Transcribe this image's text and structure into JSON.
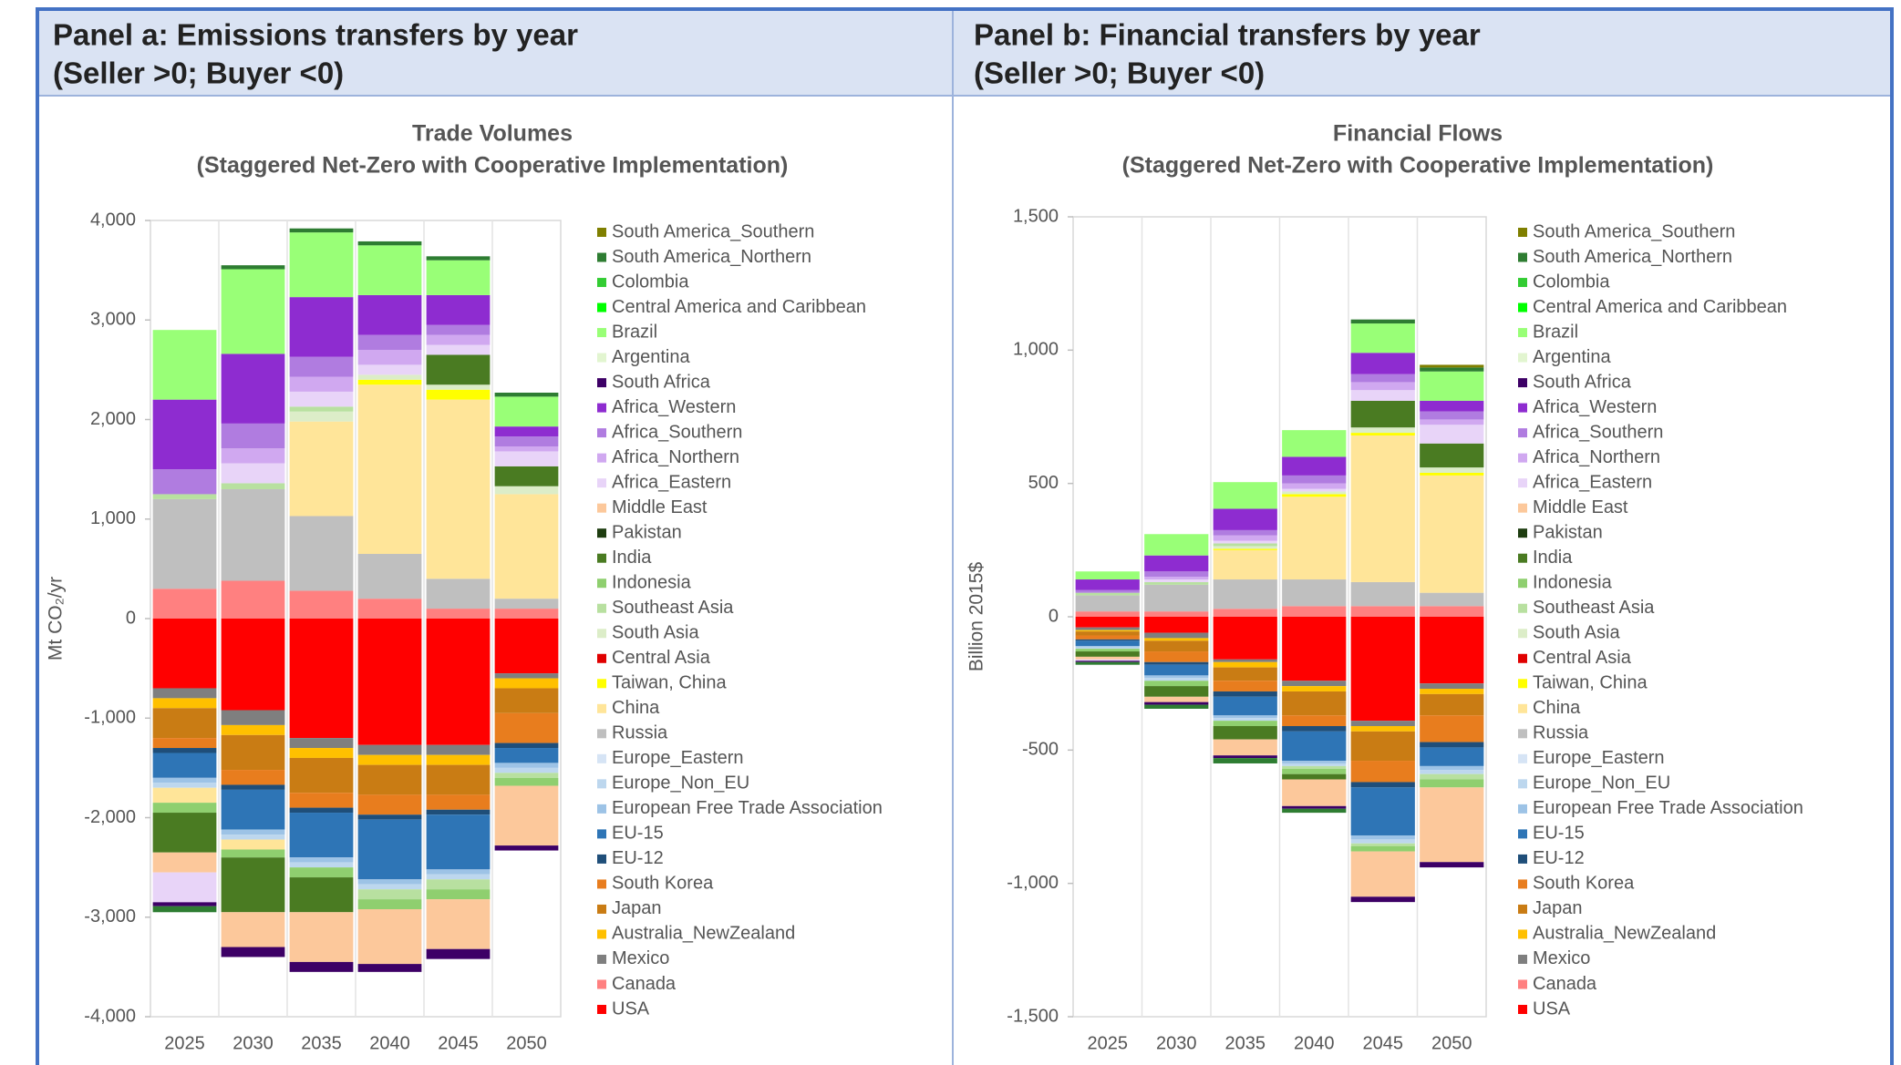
{
  "panels": [
    {
      "header": [
        "Panel a: Emissions transfers by year",
        "(Seller >0; Buyer <0)"
      ]
    },
    {
      "header": [
        "Panel b: Financial transfers by year",
        "(Seller >0; Buyer <0)"
      ]
    }
  ],
  "chart_data": [
    {
      "type": "stacked_bar",
      "title": "Trade Volumes",
      "subtitle": "(Staggered Net-Zero with Cooperative Implementation)",
      "y_label": "Mt CO₂/yr",
      "categories": [
        "2025",
        "2030",
        "2035",
        "2040",
        "2045",
        "2050"
      ],
      "ylim": [
        -4000,
        4000
      ],
      "yticks": [
        {
          "value": 4000,
          "label": "4,000"
        },
        {
          "value": 3000,
          "label": "3,000"
        },
        {
          "value": 2000,
          "label": "2,000"
        },
        {
          "value": 1000,
          "label": "1,000"
        },
        0,
        {
          "value": -1000,
          "label": "-1,000"
        },
        {
          "value": -2000,
          "label": "-2,000"
        },
        {
          "value": -3000,
          "label": "-3,000"
        },
        {
          "value": -4000,
          "label": "-4,000"
        }
      ],
      "grid": false,
      "legend": "right",
      "series": [
        {
          "name": "South America_Southern",
          "color": "#7f7f00",
          "values": [
            0,
            0,
            0,
            0,
            0,
            0
          ]
        },
        {
          "name": "South America_Northern",
          "color": "#2e7d32",
          "values": [
            -60,
            40,
            40,
            40,
            40,
            40
          ]
        },
        {
          "name": "Colombia",
          "color": "#33cc33",
          "values": [
            0,
            0,
            0,
            0,
            0,
            0
          ]
        },
        {
          "name": "Central America and Caribbean",
          "color": "#00ff00",
          "values": [
            0,
            0,
            0,
            0,
            0,
            0
          ]
        },
        {
          "name": "Brazil",
          "color": "#99ff77",
          "values": [
            700,
            850,
            650,
            500,
            350,
            300
          ]
        },
        {
          "name": "Argentina",
          "color": "#e2f5d0",
          "values": [
            0,
            0,
            0,
            0,
            0,
            0
          ]
        },
        {
          "name": "South Africa",
          "color": "#3d0066",
          "values": [
            -40,
            -100,
            -100,
            -80,
            -100,
            -50
          ]
        },
        {
          "name": "Africa_Western",
          "color": "#8e2cd0",
          "values": [
            700,
            700,
            600,
            400,
            300,
            100
          ]
        },
        {
          "name": "Africa_Southern",
          "color": "#b07ce0",
          "values": [
            250,
            250,
            200,
            150,
            100,
            100
          ]
        },
        {
          "name": "Africa_Northern",
          "color": "#d0a8f0",
          "values": [
            0,
            150,
            150,
            150,
            100,
            50
          ]
        },
        {
          "name": "Africa_Eastern",
          "color": "#e8d4f8",
          "values": [
            -300,
            200,
            150,
            100,
            100,
            150
          ]
        },
        {
          "name": "Middle East",
          "color": "#fcc89b",
          "values": [
            -200,
            -350,
            -500,
            -550,
            -500,
            -600
          ]
        },
        {
          "name": "Pakistan",
          "color": "#1e3d10",
          "values": [
            0,
            0,
            0,
            0,
            0,
            0
          ]
        },
        {
          "name": "India",
          "color": "#4a7b22",
          "values": [
            -400,
            -550,
            -350,
            0,
            300,
            200
          ]
        },
        {
          "name": "Indonesia",
          "color": "#8fcf6f",
          "values": [
            -100,
            -80,
            -100,
            -100,
            -100,
            -80
          ]
        },
        {
          "name": "Southeast Asia",
          "color": "#b8e0a0",
          "values": [
            50,
            60,
            50,
            -100,
            -100,
            -50
          ]
        },
        {
          "name": "South Asia",
          "color": "#dcedc8",
          "values": [
            0,
            0,
            100,
            50,
            50,
            80
          ]
        },
        {
          "name": "Central Asia",
          "color": "#e00000",
          "values": [
            0,
            0,
            0,
            0,
            0,
            0
          ]
        },
        {
          "name": "Taiwan, China",
          "color": "#ffff00",
          "values": [
            0,
            0,
            0,
            50,
            100,
            0
          ]
        },
        {
          "name": "China",
          "color": "#ffe599",
          "values": [
            -150,
            -100,
            950,
            1700,
            1800,
            1050
          ]
        },
        {
          "name": "Russia",
          "color": "#bfbfbf",
          "values": [
            900,
            920,
            750,
            450,
            300,
            100
          ]
        },
        {
          "name": "Europe_Eastern",
          "color": "#d6e4f5",
          "values": [
            0,
            0,
            0,
            0,
            0,
            0
          ]
        },
        {
          "name": "Europe_Non_EU",
          "color": "#bdd7ee",
          "values": [
            -50,
            -50,
            -50,
            -50,
            -50,
            -50
          ]
        },
        {
          "name": "European Free Trade Association",
          "color": "#9dc3e6",
          "values": [
            -50,
            -50,
            -50,
            -50,
            -50,
            -50
          ]
        },
        {
          "name": "EU-15",
          "color": "#2e75b6",
          "values": [
            -250,
            -400,
            -450,
            -600,
            -550,
            -150
          ]
        },
        {
          "name": "EU-12",
          "color": "#1f4e79",
          "values": [
            -50,
            -50,
            -50,
            -50,
            -50,
            -50
          ]
        },
        {
          "name": "South Korea",
          "color": "#e87d1e",
          "values": [
            -100,
            -150,
            -150,
            -200,
            -150,
            -300
          ]
        },
        {
          "name": "Japan",
          "color": "#c97c14",
          "values": [
            -300,
            -350,
            -350,
            -300,
            -300,
            -250
          ]
        },
        {
          "name": "Australia_NewZealand",
          "color": "#ffc000",
          "values": [
            -100,
            -100,
            -100,
            -100,
            -100,
            -100
          ]
        },
        {
          "name": "Mexico",
          "color": "#7f7f7f",
          "values": [
            -100,
            -150,
            -100,
            -100,
            -100,
            -50
          ]
        },
        {
          "name": "Canada",
          "color": "#ff8080",
          "values": [
            300,
            380,
            280,
            200,
            100,
            100
          ]
        },
        {
          "name": "USA",
          "color": "#ff0000",
          "values": [
            -700,
            -920,
            -1200,
            -1270,
            -1270,
            -550
          ]
        }
      ]
    },
    {
      "type": "stacked_bar",
      "title": "Financial Flows",
      "subtitle": "(Staggered Net-Zero with Cooperative Implementation)",
      "y_label": "Billion 2015$",
      "categories": [
        "2025",
        "2030",
        "2035",
        "2040",
        "2045",
        "2050"
      ],
      "ylim": [
        -1500,
        1500
      ],
      "yticks": [
        {
          "value": 1500,
          "label": "1,500"
        },
        {
          "value": 1000,
          "label": "1,000"
        },
        500,
        0,
        -500,
        {
          "value": -1000,
          "label": "-1,000"
        },
        {
          "value": -1500,
          "label": "-1,500"
        }
      ],
      "grid": false,
      "legend": "right",
      "series": [
        {
          "name": "South America_Southern",
          "color": "#7f7f00",
          "values": [
            0,
            0,
            0,
            0,
            0,
            10
          ]
        },
        {
          "name": "South America_Northern",
          "color": "#2e7d32",
          "values": [
            -10,
            -15,
            -20,
            -15,
            15,
            15
          ]
        },
        {
          "name": "Colombia",
          "color": "#33cc33",
          "values": [
            0,
            0,
            0,
            0,
            0,
            0
          ]
        },
        {
          "name": "Central America and Caribbean",
          "color": "#00ff00",
          "values": [
            0,
            0,
            0,
            0,
            0,
            0
          ]
        },
        {
          "name": "Brazil",
          "color": "#99ff77",
          "values": [
            30,
            80,
            100,
            100,
            110,
            110
          ]
        },
        {
          "name": "Argentina",
          "color": "#e2f5d0",
          "values": [
            0,
            0,
            0,
            0,
            0,
            0
          ]
        },
        {
          "name": "South Africa",
          "color": "#3d0066",
          "values": [
            -5,
            -10,
            -10,
            -10,
            -20,
            -20
          ]
        },
        {
          "name": "Africa_Western",
          "color": "#8e2cd0",
          "values": [
            40,
            60,
            80,
            70,
            80,
            40
          ]
        },
        {
          "name": "Africa_Southern",
          "color": "#b07ce0",
          "values": [
            10,
            20,
            20,
            30,
            30,
            30
          ]
        },
        {
          "name": "Africa_Northern",
          "color": "#d0a8f0",
          "values": [
            0,
            10,
            20,
            20,
            30,
            20
          ]
        },
        {
          "name": "Africa_Eastern",
          "color": "#e8d4f8",
          "values": [
            -5,
            10,
            10,
            10,
            40,
            70
          ]
        },
        {
          "name": "Middle East",
          "color": "#fcc89b",
          "values": [
            -10,
            -20,
            -60,
            -100,
            -170,
            -280
          ]
        },
        {
          "name": "Pakistan",
          "color": "#1e3d10",
          "values": [
            0,
            0,
            0,
            0,
            0,
            0
          ]
        },
        {
          "name": "India",
          "color": "#4a7b22",
          "values": [
            -20,
            -40,
            -50,
            -20,
            100,
            90
          ]
        },
        {
          "name": "Indonesia",
          "color": "#8fcf6f",
          "values": [
            -10,
            -20,
            -20,
            -20,
            -20,
            -30
          ]
        },
        {
          "name": "Southeast Asia",
          "color": "#b8e0a0",
          "values": [
            10,
            10,
            10,
            -10,
            -10,
            -20
          ]
        },
        {
          "name": "South Asia",
          "color": "#dcedc8",
          "values": [
            0,
            0,
            10,
            10,
            20,
            20
          ]
        },
        {
          "name": "Central Asia",
          "color": "#e00000",
          "values": [
            0,
            0,
            0,
            0,
            0,
            0
          ]
        },
        {
          "name": "Taiwan, China",
          "color": "#ffff00",
          "values": [
            0,
            0,
            5,
            10,
            10,
            10
          ]
        },
        {
          "name": "China",
          "color": "#ffe599",
          "values": [
            0,
            0,
            110,
            310,
            550,
            440
          ]
        },
        {
          "name": "Russia",
          "color": "#bfbfbf",
          "values": [
            60,
            100,
            110,
            100,
            90,
            50
          ]
        },
        {
          "name": "Europe_Eastern",
          "color": "#d6e4f5",
          "values": [
            0,
            0,
            0,
            0,
            0,
            0
          ]
        },
        {
          "name": "Europe_Non_EU",
          "color": "#bdd7ee",
          "values": [
            -5,
            -10,
            -10,
            -10,
            -15,
            -15
          ]
        },
        {
          "name": "European Free Trade Association",
          "color": "#9dc3e6",
          "values": [
            -5,
            -10,
            -10,
            -10,
            -15,
            -15
          ]
        },
        {
          "name": "EU-15",
          "color": "#2e75b6",
          "values": [
            -20,
            -40,
            -70,
            -110,
            -180,
            -70
          ]
        },
        {
          "name": "EU-12",
          "color": "#1f4e79",
          "values": [
            -5,
            -10,
            -20,
            -20,
            -20,
            -20
          ]
        },
        {
          "name": "South Korea",
          "color": "#e87d1e",
          "values": [
            -15,
            -40,
            -40,
            -40,
            -80,
            -100
          ]
        },
        {
          "name": "Japan",
          "color": "#c97c14",
          "values": [
            -15,
            -40,
            -50,
            -90,
            -110,
            -80
          ]
        },
        {
          "name": "Australia_NewZealand",
          "color": "#ffc000",
          "values": [
            -5,
            -10,
            -20,
            -20,
            -20,
            -20
          ]
        },
        {
          "name": "Mexico",
          "color": "#7f7f7f",
          "values": [
            -10,
            -20,
            -10,
            -20,
            -20,
            -20
          ]
        },
        {
          "name": "Canada",
          "color": "#ff8080",
          "values": [
            20,
            20,
            30,
            40,
            40,
            40
          ]
        },
        {
          "name": "USA",
          "color": "#ff0000",
          "values": [
            -40,
            -60,
            -160,
            -240,
            -390,
            -250
          ]
        }
      ]
    }
  ]
}
